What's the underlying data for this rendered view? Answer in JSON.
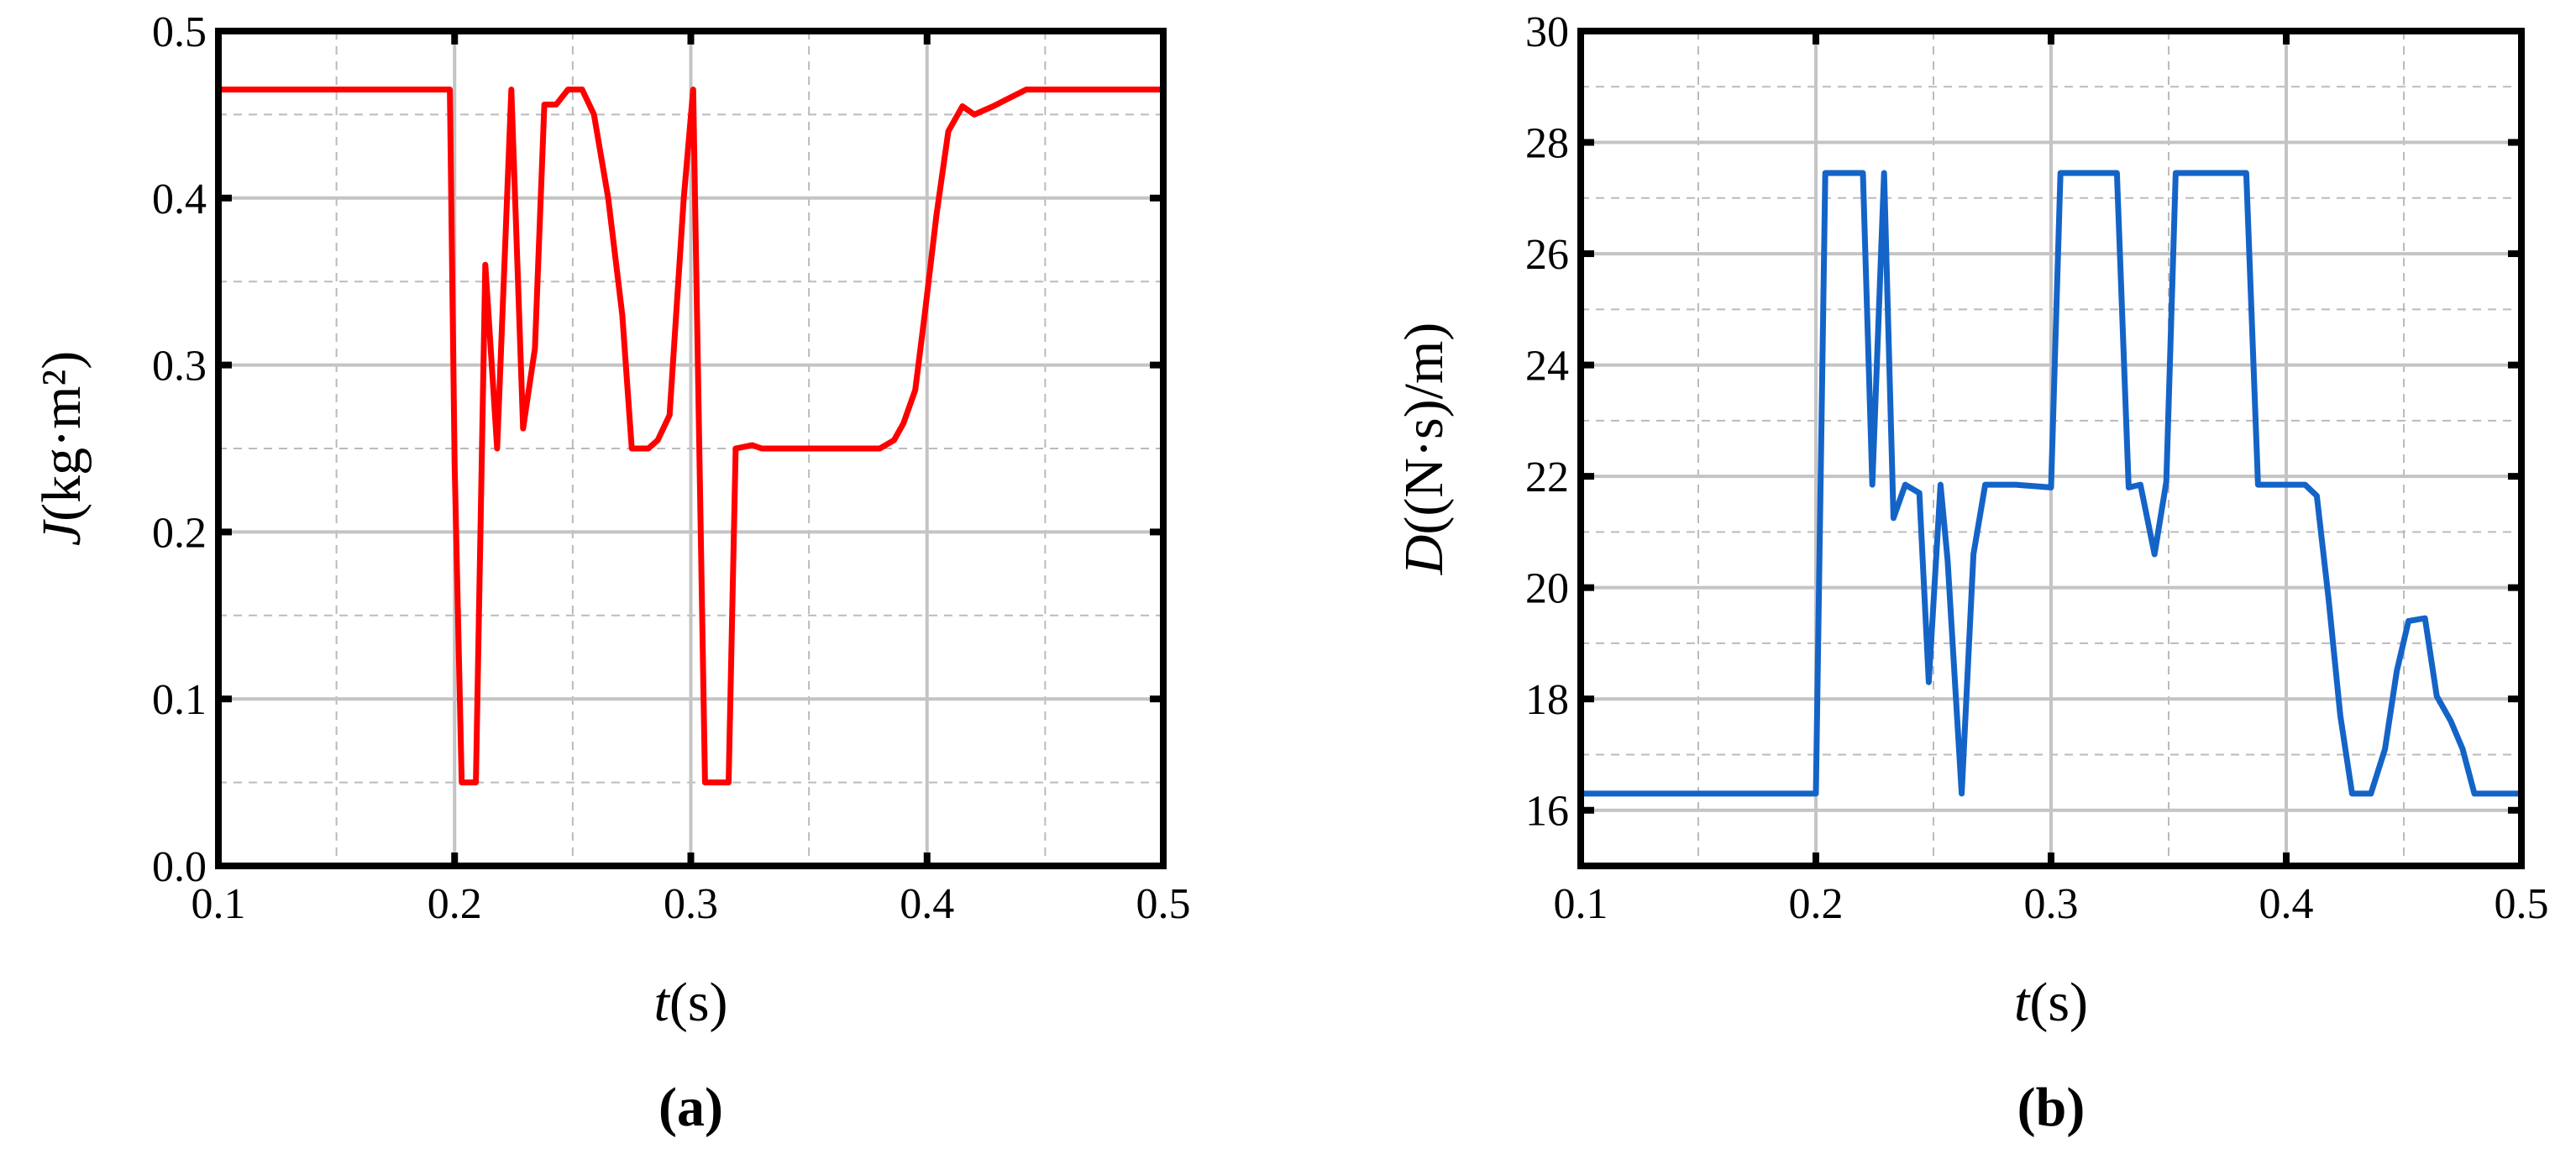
{
  "chart_data": [
    {
      "type": "line",
      "color": "#ff0000",
      "grid": true,
      "xlabel": {
        "symbol": "t",
        "unit": "(s)"
      },
      "ylabel": {
        "symbol": "J",
        "unit": "(kg·m²)"
      },
      "caption": "(a)",
      "xlim": [
        0.1,
        0.5
      ],
      "xticks": [
        0.1,
        0.2,
        0.3,
        0.4,
        0.5
      ],
      "minor_xticks": [
        0.15,
        0.25,
        0.35,
        0.45
      ],
      "ylim": [
        0,
        0.5
      ],
      "yticks": [
        {
          "value": 0,
          "label": "0.0"
        },
        0.1,
        0.2,
        0.3,
        0.4,
        0.5
      ],
      "minor_yticks": [
        0.05,
        0.15,
        0.25,
        0.35,
        0.45
      ],
      "x": [
        0.1,
        0.198,
        0.2,
        0.203,
        0.209,
        0.213,
        0.218,
        0.224,
        0.229,
        0.234,
        0.238,
        0.243,
        0.248,
        0.254,
        0.259,
        0.265,
        0.271,
        0.275,
        0.282,
        0.286,
        0.291,
        0.297,
        0.301,
        0.303,
        0.306,
        0.316,
        0.319,
        0.326,
        0.33,
        0.38,
        0.386,
        0.39,
        0.395,
        0.399,
        0.404,
        0.409,
        0.415,
        0.42,
        0.428,
        0.435,
        0.442,
        0.5
      ],
      "values": [
        0.465,
        0.465,
        0.24,
        0.05,
        0.05,
        0.36,
        0.25,
        0.465,
        0.262,
        0.31,
        0.456,
        0.456,
        0.465,
        0.465,
        0.45,
        0.4,
        0.33,
        0.25,
        0.25,
        0.255,
        0.27,
        0.4,
        0.465,
        0.3,
        0.05,
        0.05,
        0.25,
        0.252,
        0.25,
        0.25,
        0.255,
        0.265,
        0.285,
        0.33,
        0.39,
        0.44,
        0.455,
        0.45,
        0.455,
        0.46,
        0.465,
        0.465
      ]
    },
    {
      "type": "line",
      "color": "#1464c8",
      "grid": true,
      "xlabel": {
        "symbol": "t",
        "unit": "(s)"
      },
      "ylabel": {
        "symbol": "D",
        "unit": "((N·s)/m)"
      },
      "caption": "(b)",
      "xlim": [
        0.1,
        0.5
      ],
      "xticks": [
        0.1,
        0.2,
        0.3,
        0.4,
        0.5
      ],
      "minor_xticks": [
        0.15,
        0.25,
        0.35,
        0.45
      ],
      "ylim": [
        15,
        30
      ],
      "yticks": [
        16,
        18,
        20,
        22,
        24,
        26,
        28,
        30
      ],
      "minor_yticks": [
        17,
        19,
        21,
        23,
        25,
        27,
        29
      ],
      "x": [
        0.1,
        0.2,
        0.204,
        0.22,
        0.224,
        0.229,
        0.233,
        0.238,
        0.244,
        0.248,
        0.253,
        0.256,
        0.262,
        0.267,
        0.272,
        0.285,
        0.3,
        0.304,
        0.328,
        0.333,
        0.338,
        0.344,
        0.349,
        0.353,
        0.383,
        0.388,
        0.408,
        0.413,
        0.418,
        0.423,
        0.428,
        0.436,
        0.442,
        0.447,
        0.452,
        0.459,
        0.464,
        0.47,
        0.475,
        0.48,
        0.5
      ],
      "values": [
        16.3,
        16.3,
        27.45,
        27.45,
        21.85,
        27.45,
        21.25,
        21.85,
        21.7,
        18.3,
        21.85,
        20.5,
        16.3,
        20.6,
        21.85,
        21.85,
        21.8,
        27.45,
        27.45,
        21.8,
        21.85,
        20.6,
        21.9,
        27.45,
        27.45,
        21.85,
        21.85,
        21.65,
        19.8,
        17.7,
        16.3,
        16.3,
        17.1,
        18.5,
        19.4,
        19.45,
        18.05,
        17.6,
        17.1,
        16.3,
        16.3
      ]
    }
  ]
}
